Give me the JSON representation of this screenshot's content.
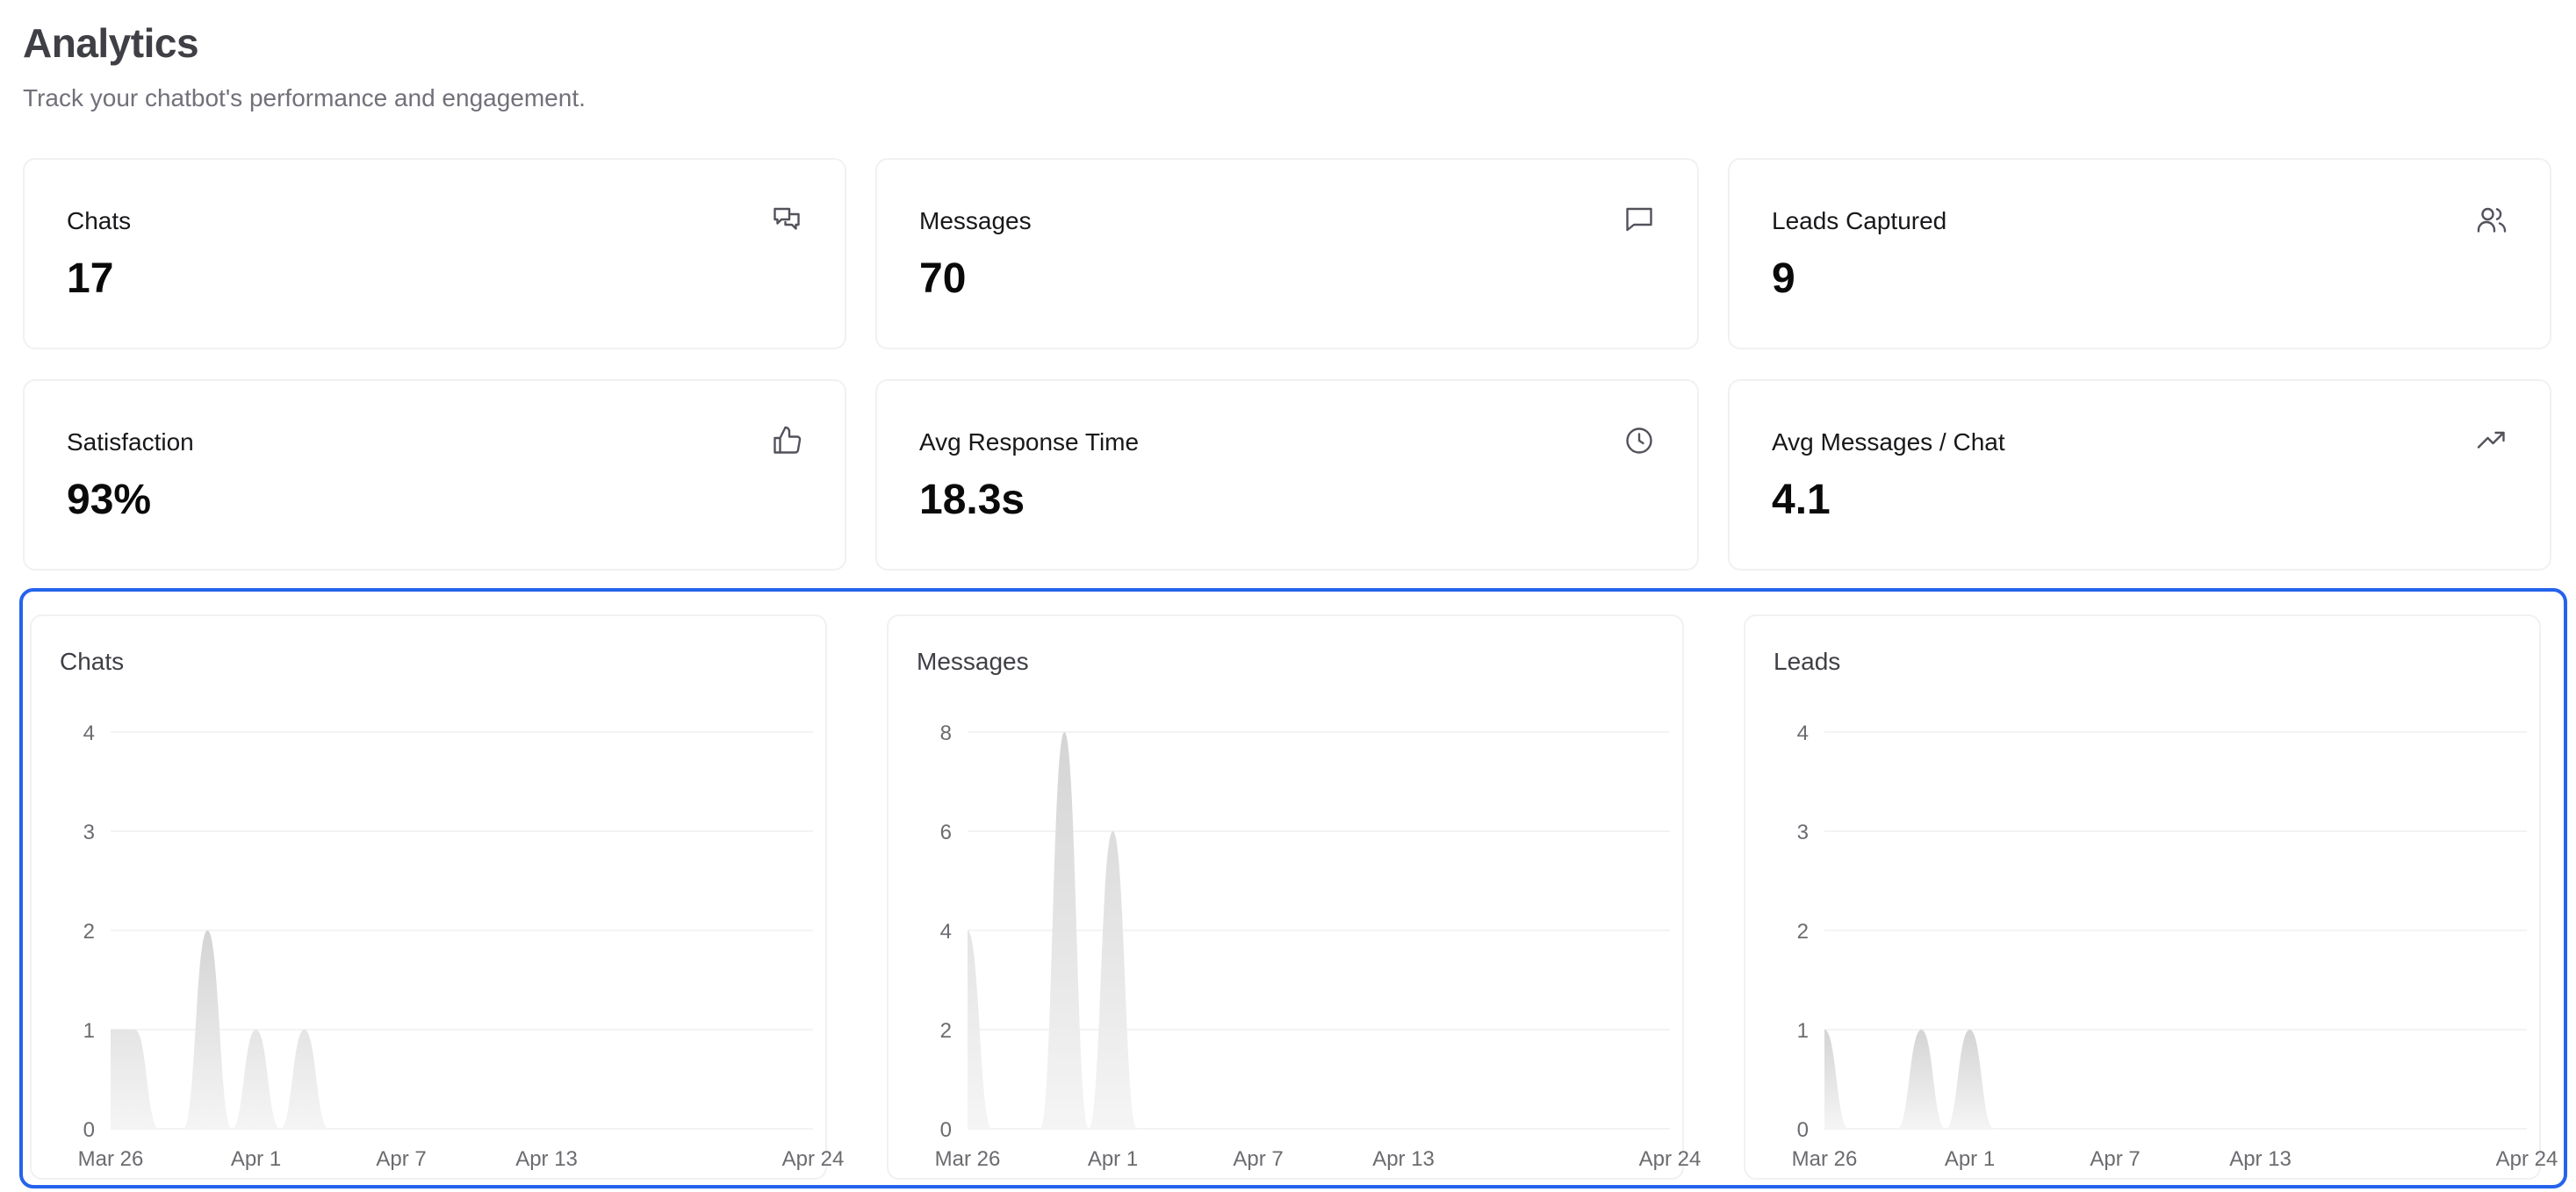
{
  "header": {
    "title": "Analytics",
    "subtitle": "Track your chatbot's performance and engagement."
  },
  "stats": [
    {
      "label": "Chats",
      "value": "17",
      "icon": "chat-bubbles-icon"
    },
    {
      "label": "Messages",
      "value": "70",
      "icon": "message-square-icon"
    },
    {
      "label": "Leads Captured",
      "value": "9",
      "icon": "users-icon"
    },
    {
      "label": "Satisfaction",
      "value": "93%",
      "icon": "thumbs-up-icon"
    },
    {
      "label": "Avg Response Time",
      "value": "18.3s",
      "icon": "clock-icon"
    },
    {
      "label": "Avg Messages / Chat",
      "value": "4.1",
      "icon": "trending-up-icon"
    }
  ],
  "charts": {
    "chats_title": "Chats",
    "messages_title": "Messages",
    "leads_title": "Leads"
  },
  "colors": {
    "highlight_border": "#2563eb",
    "area_fill_top": "#d4d4d4",
    "area_fill_bottom": "#f5f5f5"
  },
  "chart_data": [
    {
      "type": "area",
      "title": "Chats",
      "xlabel": "",
      "ylabel": "",
      "ylim": [
        0,
        4
      ],
      "yticks": [
        "0",
        "1",
        "2",
        "3",
        "4"
      ],
      "x_tick_labels": [
        "Mar 26",
        "Apr 1",
        "Apr 7",
        "Apr 13",
        "Apr 24"
      ],
      "x_tick_days": [
        0,
        6,
        12,
        18,
        29
      ],
      "x_domain_days": [
        0,
        29
      ],
      "x": [
        "Mar 26",
        "Mar 27",
        "Mar 28",
        "Mar 29",
        "Mar 30",
        "Mar 31",
        "Apr 1",
        "Apr 2",
        "Apr 3",
        "Apr 4",
        "Apr 5",
        "Apr 6",
        "Apr 7",
        "Apr 8",
        "Apr 9",
        "Apr 10",
        "Apr 11",
        "Apr 12",
        "Apr 13",
        "Apr 14",
        "Apr 15",
        "Apr 16",
        "Apr 17",
        "Apr 18",
        "Apr 19",
        "Apr 20",
        "Apr 21",
        "Apr 22",
        "Apr 23",
        "Apr 24"
      ],
      "values": [
        1,
        1,
        0,
        0,
        2,
        0,
        1,
        0,
        1,
        0,
        0,
        0,
        0,
        0,
        0,
        0,
        0,
        0,
        0,
        0,
        0,
        0,
        0,
        0,
        0,
        0,
        0,
        0,
        0,
        0
      ],
      "grid": true
    },
    {
      "type": "area",
      "title": "Messages",
      "xlabel": "",
      "ylabel": "",
      "ylim": [
        0,
        8
      ],
      "yticks": [
        "0",
        "2",
        "4",
        "6",
        "8"
      ],
      "x_tick_labels": [
        "Mar 26",
        "Apr 1",
        "Apr 7",
        "Apr 13",
        "Apr 24"
      ],
      "x_tick_days": [
        0,
        6,
        12,
        18,
        29
      ],
      "x_domain_days": [
        0,
        29
      ],
      "x": [
        "Mar 26",
        "Mar 27",
        "Mar 28",
        "Mar 29",
        "Mar 30",
        "Mar 31",
        "Apr 1",
        "Apr 2",
        "Apr 3",
        "Apr 4",
        "Apr 5",
        "Apr 6",
        "Apr 7",
        "Apr 8",
        "Apr 9",
        "Apr 10",
        "Apr 11",
        "Apr 12",
        "Apr 13",
        "Apr 14",
        "Apr 15",
        "Apr 16",
        "Apr 17",
        "Apr 18",
        "Apr 19",
        "Apr 20",
        "Apr 21",
        "Apr 22",
        "Apr 23",
        "Apr 24"
      ],
      "values": [
        4,
        0,
        0,
        0,
        8,
        0,
        6,
        0,
        0,
        0,
        0,
        0,
        0,
        0,
        0,
        0,
        0,
        0,
        0,
        0,
        0,
        0,
        0,
        0,
        0,
        0,
        0,
        0,
        0,
        0
      ],
      "grid": true
    },
    {
      "type": "area",
      "title": "Leads",
      "xlabel": "",
      "ylabel": "",
      "ylim": [
        0,
        4
      ],
      "yticks": [
        "0",
        "1",
        "2",
        "3",
        "4"
      ],
      "x_tick_labels": [
        "Mar 26",
        "Apr 1",
        "Apr 7",
        "Apr 13",
        "Apr 24"
      ],
      "x_tick_days": [
        0,
        6,
        12,
        18,
        29
      ],
      "x_domain_days": [
        0,
        29
      ],
      "x": [
        "Mar 26",
        "Mar 27",
        "Mar 28",
        "Mar 29",
        "Mar 30",
        "Mar 31",
        "Apr 1",
        "Apr 2",
        "Apr 3",
        "Apr 4",
        "Apr 5",
        "Apr 6",
        "Apr 7",
        "Apr 8",
        "Apr 9",
        "Apr 10",
        "Apr 11",
        "Apr 12",
        "Apr 13",
        "Apr 14",
        "Apr 15",
        "Apr 16",
        "Apr 17",
        "Apr 18",
        "Apr 19",
        "Apr 20",
        "Apr 21",
        "Apr 22",
        "Apr 23",
        "Apr 24"
      ],
      "values": [
        1,
        0,
        0,
        0,
        1,
        0,
        1,
        0,
        0,
        0,
        0,
        0,
        0,
        0,
        0,
        0,
        0,
        0,
        0,
        0,
        0,
        0,
        0,
        0,
        0,
        0,
        0,
        0,
        0,
        0
      ],
      "grid": true
    }
  ]
}
